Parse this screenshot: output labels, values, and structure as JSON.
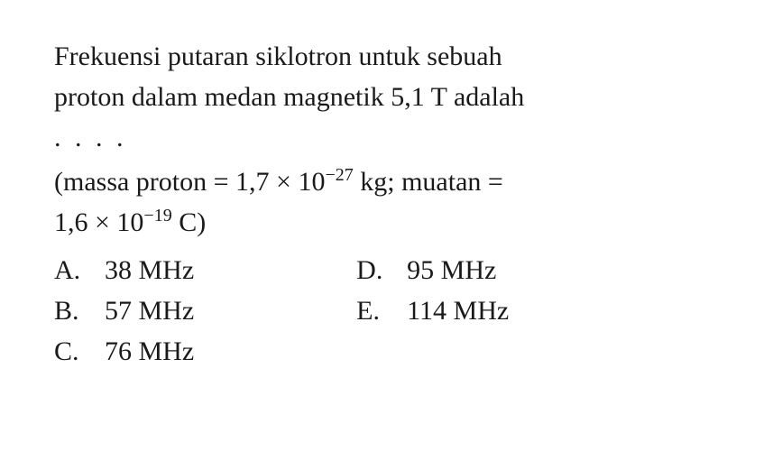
{
  "question": {
    "line1": "Frekuensi putaran siklotron untuk sebuah",
    "line2": "proton dalam medan magnetik 5,1 T adalah",
    "dots": ". . . ."
  },
  "given": {
    "prefix": "(massa proton = 1,7 × 10",
    "exp1": "−27",
    "mid": " kg; muatan =",
    "line2_prefix": "1,6 × 10",
    "exp2": "−19",
    "line2_suffix": " C)"
  },
  "options": {
    "left": [
      {
        "letter": "A.",
        "value": "38 MHz"
      },
      {
        "letter": "B.",
        "value": "57 MHz"
      },
      {
        "letter": "C.",
        "value": "76 MHz"
      }
    ],
    "right": [
      {
        "letter": "D.",
        "value": "95 MHz"
      },
      {
        "letter": "E.",
        "value": "114 MHz"
      }
    ]
  },
  "styling": {
    "background_color": "#ffffff",
    "text_color": "#1a1a1a",
    "font_family": "Times New Roman",
    "body_fontsize": 30,
    "sup_fontsize": 20,
    "line_height": 1.5,
    "option_letter_width": 56,
    "column_gap": 180
  }
}
